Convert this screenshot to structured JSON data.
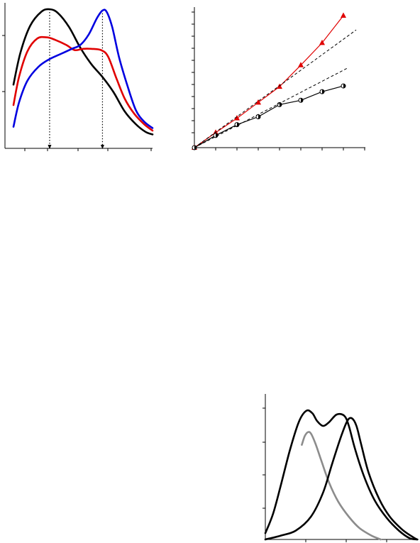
{
  "chart_data": [
    {
      "type": "line",
      "xlim": [
        0,
        1
      ],
      "ylim": [
        0,
        1
      ],
      "grid": false,
      "series": [
        {
          "color": "#000000",
          "x": [
            0,
            0.05,
            0.12,
            0.2,
            0.26,
            0.32,
            0.4,
            0.48,
            0.56,
            0.64,
            0.72,
            0.8,
            0.88,
            0.95,
            1.0
          ],
          "y": [
            0.41,
            0.66,
            0.87,
            0.98,
            1.0,
            0.97,
            0.86,
            0.7,
            0.57,
            0.47,
            0.35,
            0.2,
            0.1,
            0.04,
            0.02
          ]
        },
        {
          "color": "#e00000",
          "x": [
            0,
            0.04,
            0.1,
            0.17,
            0.24,
            0.3,
            0.38,
            0.44,
            0.5,
            0.56,
            0.63,
            0.68,
            0.74,
            0.8,
            0.87,
            0.94,
            1.0
          ],
          "y": [
            0.25,
            0.47,
            0.67,
            0.77,
            0.78,
            0.76,
            0.72,
            0.68,
            0.69,
            0.69,
            0.68,
            0.63,
            0.46,
            0.3,
            0.18,
            0.1,
            0.05
          ]
        },
        {
          "color": "#0000e0",
          "x": [
            0,
            0.04,
            0.1,
            0.18,
            0.26,
            0.34,
            0.42,
            0.48,
            0.54,
            0.6,
            0.64,
            0.67,
            0.71,
            0.76,
            0.82,
            0.88,
            0.94,
            1.0
          ],
          "y": [
            0.08,
            0.27,
            0.44,
            0.55,
            0.61,
            0.65,
            0.69,
            0.72,
            0.8,
            0.93,
            0.99,
            0.98,
            0.86,
            0.62,
            0.4,
            0.21,
            0.12,
            0.07
          ]
        }
      ],
      "markers": [
        0.26,
        0.64
      ]
    },
    {
      "type": "line",
      "xlim": [
        0,
        8
      ],
      "ylim": [
        0,
        18.5
      ],
      "grid": false,
      "series": [
        {
          "color": "#e00000",
          "marker": "triangle",
          "x": [
            0,
            1,
            2,
            3,
            4,
            5,
            6,
            7
          ],
          "y": [
            0,
            2.1,
            4.1,
            6.3,
            8.5,
            11.5,
            14.6,
            18.4
          ]
        },
        {
          "color": "#000000",
          "marker": "half-circle",
          "x": [
            0,
            1,
            2,
            3,
            4,
            5,
            6,
            7
          ],
          "y": [
            0,
            1.7,
            3.2,
            4.3,
            6.0,
            6.6,
            7.8,
            8.6
          ]
        },
        {
          "color": "#000000",
          "dashed": true,
          "x": [
            0,
            7.6
          ],
          "y": [
            0,
            16.4
          ]
        },
        {
          "color": "#000000",
          "dashed": true,
          "x": [
            0,
            7.2
          ],
          "y": [
            0,
            11.1
          ]
        }
      ]
    },
    {
      "type": "line",
      "xlim": [
        0,
        1
      ],
      "ylim": [
        0,
        1.08
      ],
      "grid": false,
      "series": [
        {
          "color": "#000000",
          "x": [
            0,
            0.05,
            0.1,
            0.16,
            0.22,
            0.27,
            0.31,
            0.34,
            0.38,
            0.42,
            0.47,
            0.52,
            0.55,
            0.59,
            0.65,
            0.72,
            0.8,
            0.88,
            0.95,
            1.0
          ],
          "y": [
            0.05,
            0.2,
            0.42,
            0.7,
            0.93,
            1.02,
            1.0,
            0.94,
            0.9,
            0.93,
            0.99,
            0.98,
            0.9,
            0.72,
            0.5,
            0.31,
            0.17,
            0.07,
            0.01,
            0
          ]
        },
        {
          "color": "#8c8c8c",
          "x": [
            0.24,
            0.26,
            0.28,
            0.3,
            0.33,
            0.37,
            0.42,
            0.48,
            0.55,
            0.62,
            0.7,
            0.76
          ],
          "y": [
            0.75,
            0.82,
            0.85,
            0.84,
            0.76,
            0.62,
            0.45,
            0.3,
            0.18,
            0.09,
            0.03,
            0
          ]
        },
        {
          "color": "#000000",
          "x": [
            0,
            0.1,
            0.2,
            0.3,
            0.38,
            0.44,
            0.5,
            0.54,
            0.57,
            0.6,
            0.63,
            0.68,
            0.75,
            0.82,
            0.9,
            0.97,
            1.0
          ],
          "y": [
            0,
            0.03,
            0.07,
            0.18,
            0.37,
            0.6,
            0.82,
            0.94,
            0.96,
            0.9,
            0.76,
            0.53,
            0.32,
            0.18,
            0.08,
            0.02,
            0
          ]
        }
      ]
    }
  ]
}
